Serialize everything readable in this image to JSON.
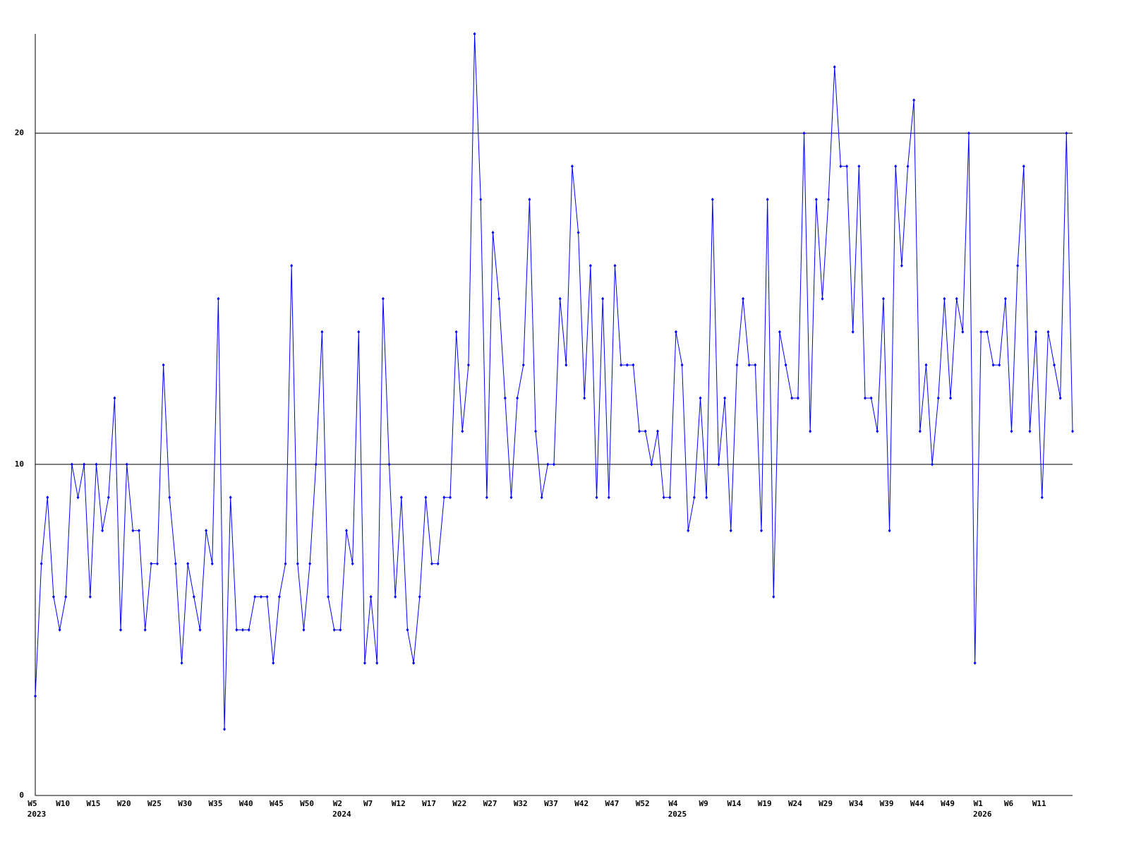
{
  "chart_data": {
    "type": "line",
    "color": "#0000ff",
    "grid": true,
    "ylim": [
      0,
      23
    ],
    "yticks": [
      0,
      10,
      20
    ],
    "categories": [
      "W5",
      null,
      null,
      null,
      null,
      "W10",
      null,
      null,
      null,
      null,
      "W15",
      null,
      null,
      null,
      null,
      "W20",
      null,
      null,
      null,
      null,
      "W25",
      null,
      null,
      null,
      null,
      "W30",
      null,
      null,
      null,
      null,
      "W35",
      null,
      null,
      null,
      null,
      "W40",
      null,
      null,
      null,
      null,
      "W45",
      null,
      null,
      null,
      null,
      "W50",
      null,
      null,
      null,
      null,
      "W2",
      null,
      null,
      null,
      null,
      "W7",
      null,
      null,
      null,
      null,
      "W12",
      null,
      null,
      null,
      null,
      "W17",
      null,
      null,
      null,
      null,
      "W22",
      null,
      null,
      null,
      null,
      "W27",
      null,
      null,
      null,
      null,
      "W32",
      null,
      null,
      null,
      null,
      "W37",
      null,
      null,
      null,
      null,
      "W42",
      null,
      null,
      null,
      null,
      "W47",
      null,
      null,
      null,
      null,
      "W52",
      null,
      null,
      null,
      null,
      "W4",
      null,
      null,
      null,
      null,
      "W9",
      null,
      null,
      null,
      null,
      "W14",
      null,
      null,
      null,
      null,
      "W19",
      null,
      null,
      null,
      null,
      "W24",
      null,
      null,
      null,
      null,
      "W29",
      null,
      null,
      null,
      null,
      "W34",
      null,
      null,
      null,
      null,
      "W39",
      null,
      null,
      null,
      null,
      "W44",
      null,
      null,
      null,
      null,
      "W49",
      null,
      null,
      null,
      null,
      "W1",
      null,
      null,
      null,
      null,
      "W6",
      null,
      null,
      null,
      null,
      "W11",
      null,
      null,
      null,
      null,
      null
    ],
    "year_labels": [
      "2023",
      null,
      null,
      null,
      null,
      null,
      null,
      null,
      null,
      null,
      null,
      null,
      null,
      null,
      null,
      null,
      null,
      null,
      null,
      null,
      null,
      null,
      null,
      null,
      null,
      null,
      null,
      null,
      null,
      null,
      null,
      null,
      null,
      null,
      null,
      null,
      null,
      null,
      null,
      null,
      null,
      null,
      null,
      null,
      null,
      null,
      null,
      null,
      null,
      null,
      "2024",
      null,
      null,
      null,
      null,
      null,
      null,
      null,
      null,
      null,
      null,
      null,
      null,
      null,
      null,
      null,
      null,
      null,
      null,
      null,
      null,
      null,
      null,
      null,
      null,
      null,
      null,
      null,
      null,
      null,
      null,
      null,
      null,
      null,
      null,
      null,
      null,
      null,
      null,
      null,
      null,
      null,
      null,
      null,
      null,
      null,
      null,
      null,
      null,
      null,
      null,
      null,
      null,
      null,
      null,
      "2025",
      null,
      null,
      null,
      null,
      null,
      null,
      null,
      null,
      null,
      null,
      null,
      null,
      null,
      null,
      null,
      null,
      null,
      null,
      null,
      null,
      null,
      null,
      null,
      null,
      null,
      null,
      null,
      null,
      null,
      null,
      null,
      null,
      null,
      null,
      null,
      null,
      null,
      null,
      null,
      null,
      null,
      null,
      null,
      null,
      null,
      null,
      null,
      null,
      null,
      "2026",
      null,
      null,
      null,
      null,
      null,
      null,
      null,
      null,
      null,
      null,
      null,
      null,
      null,
      null,
      null
    ],
    "values": [
      3,
      7,
      9,
      6,
      5,
      6,
      10,
      9,
      10,
      6,
      10,
      8,
      9,
      12,
      5,
      10,
      8,
      8,
      5,
      7,
      7,
      13,
      9,
      7,
      4,
      7,
      6,
      5,
      8,
      7,
      15,
      2,
      9,
      5,
      5,
      5,
      6,
      6,
      6,
      4,
      6,
      7,
      16,
      7,
      5,
      7,
      10,
      14,
      6,
      5,
      5,
      8,
      7,
      14,
      4,
      6,
      4,
      15,
      10,
      6,
      9,
      5,
      4,
      6,
      9,
      7,
      7,
      9,
      9,
      14,
      11,
      13,
      23,
      18,
      9,
      17,
      15,
      12,
      9,
      12,
      13,
      18,
      11,
      9,
      10,
      10,
      15,
      13,
      19,
      17,
      12,
      16,
      9,
      15,
      9,
      16,
      13,
      13,
      13,
      11,
      11,
      10,
      11,
      9,
      9,
      14,
      13,
      8,
      9,
      12,
      9,
      18,
      10,
      12,
      8,
      13,
      15,
      13,
      13,
      8,
      18,
      6,
      14,
      13,
      12,
      12,
      20,
      11,
      18,
      15,
      18,
      22,
      19,
      19,
      14,
      19,
      12,
      12,
      11,
      15,
      8,
      19,
      16,
      19,
      21,
      11,
      13,
      10,
      12,
      15,
      12,
      15,
      14,
      20,
      4,
      14,
      14,
      13,
      13,
      15,
      11,
      16,
      19,
      11,
      14,
      9,
      14,
      13,
      12,
      20,
      11
    ]
  }
}
